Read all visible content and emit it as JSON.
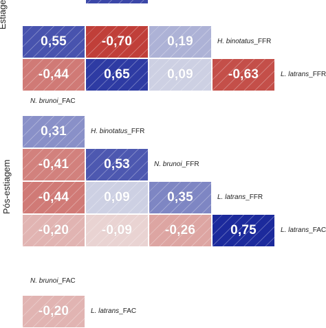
{
  "colors": {
    "negative_strong": "#bf3b35",
    "positive_strong": "#1c2a9c",
    "neutral": "#f2f2f2"
  },
  "chart_data": [
    {
      "type": "heatmap",
      "ylabel": "Estiagem",
      "cells": [
        {
          "row": 1,
          "col": 0,
          "label": "0,55",
          "value": 0.55
        },
        {
          "row": 1,
          "col": 1,
          "label": "-0,70",
          "value": -0.7
        },
        {
          "row": 1,
          "col": 2,
          "label": "0,19",
          "value": 0.19
        },
        {
          "row": 2,
          "col": 0,
          "label": "-0,44",
          "value": -0.44
        },
        {
          "row": 2,
          "col": 1,
          "label": "0,65",
          "value": 0.65
        },
        {
          "row": 2,
          "col": 2,
          "label": "0,09",
          "value": 0.09
        },
        {
          "row": 2,
          "col": 3,
          "label": "-0,63",
          "value": -0.63
        }
      ],
      "row_labels": [
        {
          "row": 1,
          "col": 3,
          "species": "H. binotatus",
          "suffix": "_FFR"
        },
        {
          "row": 2,
          "col": 4,
          "species": "L. latrans",
          "suffix": "_FFR"
        }
      ]
    },
    {
      "type": "heatmap",
      "ylabel": "Pós-estiagem",
      "header_label": {
        "species": "N. brunoi",
        "suffix": "_FAC"
      },
      "cells": [
        {
          "row": 0,
          "col": 0,
          "label": "0,31",
          "value": 0.31
        },
        {
          "row": 1,
          "col": 0,
          "label": "-0,41",
          "value": -0.41
        },
        {
          "row": 1,
          "col": 1,
          "label": "0,53",
          "value": 0.53
        },
        {
          "row": 2,
          "col": 0,
          "label": "-0,44",
          "value": -0.44
        },
        {
          "row": 2,
          "col": 1,
          "label": "0,09",
          "value": 0.09
        },
        {
          "row": 2,
          "col": 2,
          "label": "0,35",
          "value": 0.35
        },
        {
          "row": 3,
          "col": 0,
          "label": "-0,20",
          "value": -0.2
        },
        {
          "row": 3,
          "col": 1,
          "label": "-0,09",
          "value": -0.09
        },
        {
          "row": 3,
          "col": 2,
          "label": "-0,26",
          "value": -0.26
        },
        {
          "row": 3,
          "col": 3,
          "label": "0,75",
          "value": 0.75
        }
      ],
      "row_labels": [
        {
          "row": 0,
          "col": 1,
          "species": "H. binotatus",
          "suffix": "_FFR"
        },
        {
          "row": 1,
          "col": 2,
          "species": "N. brunoi",
          "suffix": "_FFR"
        },
        {
          "row": 2,
          "col": 3,
          "species": "L. latrans",
          "suffix": "_FFR"
        },
        {
          "row": 3,
          "col": 4,
          "species": "L. latrans",
          "suffix": "_FAC"
        }
      ]
    },
    {
      "type": "heatmap",
      "header_label": {
        "species": "N. brunoi",
        "suffix": "_FAC"
      },
      "cells": [
        {
          "row": 0,
          "col": 0,
          "label": "-0,20",
          "value": -0.2
        }
      ],
      "row_labels": [
        {
          "row": 0,
          "col": 1,
          "species": "L. latrans",
          "suffix": "_FAC"
        }
      ]
    }
  ]
}
